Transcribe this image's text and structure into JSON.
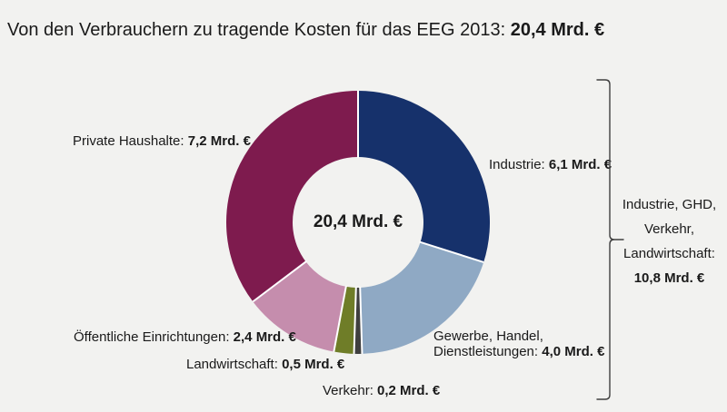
{
  "page": {
    "background": "#F2F2F0",
    "text_color": "#1A1A1A"
  },
  "title": {
    "prefix": "Von den Verbrauchern zu tragende Kosten für das EEG 2013: ",
    "value": "20,4 Mrd. €"
  },
  "center_label": "20,4 Mrd. €",
  "chart_data": {
    "type": "pie",
    "subtype": "donut",
    "title": "Von den Verbrauchern zu tragende Kosten für das EEG 2013: 20,4 Mrd. €",
    "unit": "Mrd. €",
    "total": 20.4,
    "center_label": "20,4 Mrd. €",
    "start_angle_deg": 0,
    "direction": "clockwise",
    "legend_position": "none",
    "separator_color": "#FFFFFF",
    "segments": [
      {
        "id": "industrie",
        "label": "Industrie",
        "value": 6.1,
        "value_label": "6,1 Mrd. €",
        "color": "#16316B"
      },
      {
        "id": "gewerbe-handel-dienstleistungen",
        "label": "Gewerbe, Handel, Dienstleistungen",
        "value": 4.0,
        "value_label": "4,0 Mrd. €",
        "color": "#8FA9C4"
      },
      {
        "id": "verkehr",
        "label": "Verkehr",
        "value": 0.2,
        "value_label": "0,2 Mrd. €",
        "color": "#3F3F3F"
      },
      {
        "id": "landwirtschaft",
        "label": "Landwirtschaft",
        "value": 0.5,
        "value_label": "0,5 Mrd. €",
        "color": "#6F7D28"
      },
      {
        "id": "oeffentliche-einrichtungen",
        "label": "Öffentliche Einrichtungen",
        "value": 2.4,
        "value_label": "2,4 Mrd. €",
        "color": "#C58DAD"
      },
      {
        "id": "private-haushalte",
        "label": "Private Haushalte",
        "value": 7.2,
        "value_label": "7,2 Mrd. €",
        "color": "#7E1B4E"
      }
    ],
    "grouping": {
      "members": [
        "Industrie",
        "GHD",
        "Verkehr",
        "Landwirtschaft"
      ],
      "value": 10.8,
      "value_label": "10,8 Mrd. €"
    }
  },
  "labels": {
    "private_haushalte": {
      "prefix": "Private Haushalte: ",
      "value": "7,2 Mrd. €"
    },
    "industrie": {
      "prefix": "Industrie: ",
      "value": "6,1 Mrd. €"
    },
    "gewerbe": {
      "line1": "Gewerbe, Handel,",
      "line2_prefix": "Dienstleistungen: ",
      "value": "4,0 Mrd. €"
    },
    "verkehr": {
      "prefix": "Verkehr: ",
      "value": "0,2 Mrd. €"
    },
    "landwirtschaft": {
      "prefix": "Landwirtschaft: ",
      "value": "0,5 Mrd. €"
    },
    "oeffentliche_einrichtungen": {
      "prefix": "Öffentliche Einrichtungen: ",
      "value": "2,4 Mrd. €"
    }
  },
  "bracket_annotation": {
    "line1": "Industrie, GHD,",
    "line2": "Verkehr,",
    "line3": "Landwirtschaft:",
    "value": "10,8 Mrd. €"
  }
}
